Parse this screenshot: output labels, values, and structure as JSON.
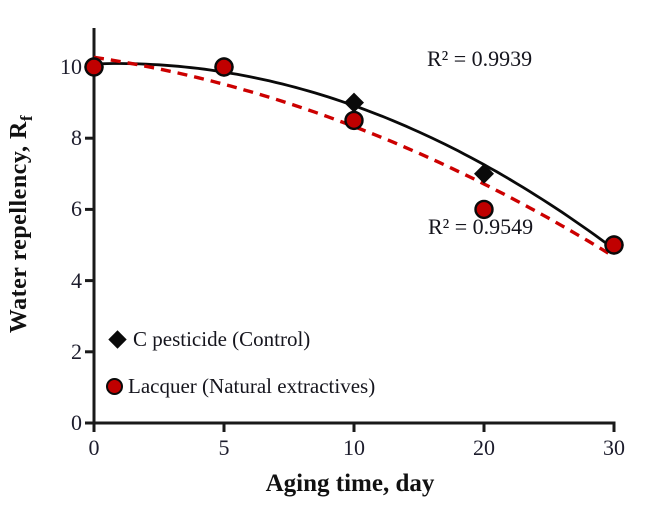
{
  "chart_data": {
    "type": "scatter",
    "title": "",
    "xlabel": "Aging time, day",
    "ylabel": "Water repellency, Rf",
    "ylabel_main": "Water repellency, R",
    "ylabel_sub": "f",
    "categories": [
      "0",
      "5",
      "10",
      "20",
      "30"
    ],
    "x_values": [
      0,
      5,
      10,
      20,
      30
    ],
    "x_axis_type": "category (equally spaced)",
    "y_ticks_top_to_bottom": [
      "10",
      "8",
      "6",
      "4",
      "2",
      "0"
    ],
    "ylim": [
      0,
      11
    ],
    "grid": false,
    "legend_position": "inside bottom-left",
    "trendline": "quadratic (2nd order polynomial, computed from series values)",
    "series": [
      {
        "name": "C pesticide (Control)",
        "marker": "diamond",
        "marker_color": "#0a0a0a",
        "line_style": "solid",
        "line_color": "#0a0a0a",
        "values": [
          10,
          10,
          9,
          7,
          5
        ],
        "r_squared_label": "R² = 0.9939"
      },
      {
        "name": "Lacquer (Natural extractives)",
        "marker": "circle",
        "marker_color": "#c00000",
        "marker_outline": "#0a0a0a",
        "line_style": "dashed",
        "line_color": "#cc0000",
        "values": [
          10,
          10,
          8.5,
          6,
          5
        ],
        "r_squared_label": "R² = 0.9549"
      }
    ]
  },
  "colors": {
    "background": "#ffffff",
    "axis": "#1a1a1a",
    "text": "#1c1c24",
    "accent_red": "#c00000"
  }
}
